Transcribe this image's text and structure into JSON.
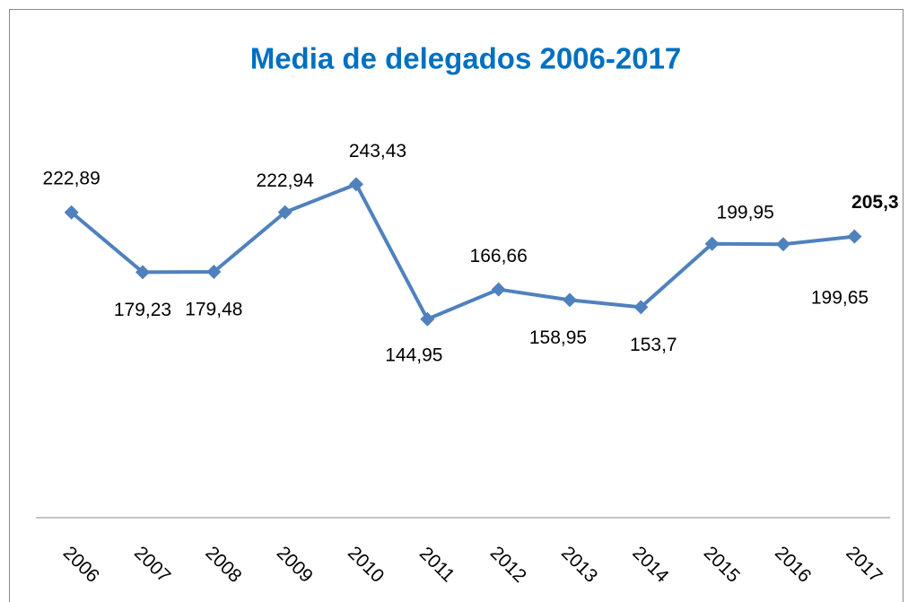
{
  "chart_data": {
    "type": "line",
    "title": "Media de delegados 2006-2017",
    "categories": [
      "2006",
      "2007",
      "2008",
      "2009",
      "2010",
      "2011",
      "2012",
      "2013",
      "2014",
      "2015",
      "2016",
      "2017"
    ],
    "series": [
      {
        "color": "#4f81bd",
        "values": [
          222.89,
          179.23,
          179.48,
          222.94,
          243.43,
          144.95,
          166.66,
          158.95,
          153.7,
          199.95,
          199.65,
          205.3
        ],
        "value_labels": [
          "222,89",
          "179,23",
          "179,48",
          "222,94",
          "243,43",
          "144,95",
          "166,66",
          "158,95",
          "153,7",
          "199,95",
          "199,65",
          "205,3"
        ]
      }
    ],
    "ylim": [
      0,
      300
    ],
    "grid": false
  }
}
